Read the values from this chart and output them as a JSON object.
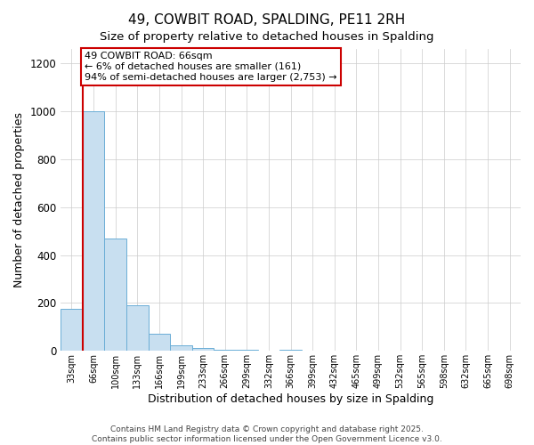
{
  "title": "49, COWBIT ROAD, SPALDING, PE11 2RH",
  "subtitle": "Size of property relative to detached houses in Spalding",
  "xlabel": "Distribution of detached houses by size in Spalding",
  "ylabel": "Number of detached properties",
  "bar_labels": [
    "33sqm",
    "66sqm",
    "100sqm",
    "133sqm",
    "166sqm",
    "199sqm",
    "233sqm",
    "266sqm",
    "299sqm",
    "332sqm",
    "366sqm",
    "399sqm",
    "432sqm",
    "465sqm",
    "499sqm",
    "532sqm",
    "565sqm",
    "598sqm",
    "632sqm",
    "665sqm",
    "698sqm"
  ],
  "bar_values": [
    175,
    1000,
    470,
    192,
    70,
    22,
    12,
    5,
    4,
    0,
    3,
    0,
    0,
    0,
    0,
    0,
    0,
    0,
    0,
    0,
    0
  ],
  "bar_color": "#c8dff0",
  "bar_edge_color": "#6baed6",
  "annotation_text_line1": "49 COWBIT ROAD: 66sqm",
  "annotation_text_line2": "← 6% of detached houses are smaller (161)",
  "annotation_text_line3": "94% of semi-detached houses are larger (2,753) →",
  "annotation_box_color": "#ffffff",
  "annotation_box_edge_color": "#cc0000",
  "property_line_color": "#cc0000",
  "property_line_bar_index": 1,
  "ylim": [
    0,
    1260
  ],
  "yticks": [
    0,
    200,
    400,
    600,
    800,
    1000,
    1200
  ],
  "footer_line1": "Contains HM Land Registry data © Crown copyright and database right 2025.",
  "footer_line2": "Contains public sector information licensed under the Open Government Licence v3.0.",
  "background_color": "#ffffff",
  "grid_color": "#cccccc"
}
